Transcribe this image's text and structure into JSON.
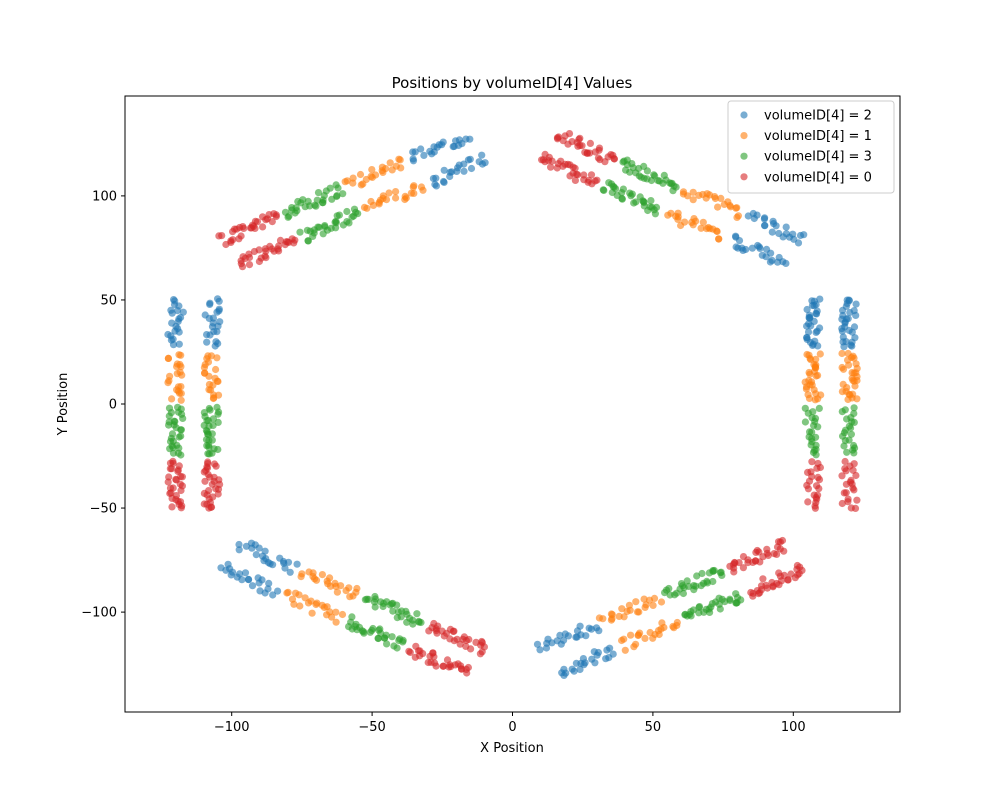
{
  "chart_data": {
    "type": "scatter",
    "title": "Positions by volumeID[4] Values",
    "xlabel": "X Position",
    "ylabel": "Y Position",
    "xlim": [
      -138,
      138
    ],
    "ylim": [
      -148,
      148
    ],
    "xticks": [
      -100,
      -50,
      0,
      50,
      100
    ],
    "yticks": [
      -100,
      -50,
      0,
      50,
      100
    ],
    "xtick_labels": [
      "−100",
      "−50",
      "0",
      "50",
      "100"
    ],
    "ytick_labels": [
      "−100",
      "−50",
      "0",
      "50",
      "100"
    ],
    "grid": false,
    "legend_position": "top-right",
    "marker_alpha": 0.6,
    "series": [
      {
        "name": "volumeID[4] = 2",
        "color": "#1f77b4",
        "band": [
          0,
          26
        ]
      },
      {
        "name": "volumeID[4] = 1",
        "color": "#ff7f0e",
        "band": [
          -26,
          0
        ]
      },
      {
        "name": "volumeID[4] = 3",
        "color": "#2ca02c",
        "band": [
          26,
          52
        ]
      },
      {
        "name": "volumeID[4] = 0",
        "color": "#d62728",
        "band": [
          -52,
          -26
        ]
      }
    ],
    "staves": [
      {
        "angle_deg": 0,
        "radii": [
          107,
          120
        ],
        "band_order": [
          3,
          2,
          1,
          0
        ]
      },
      {
        "angle_deg": 60,
        "radii": [
          107,
          120
        ],
        "band_order": [
          0,
          1,
          2,
          3
        ]
      },
      {
        "angle_deg": 120,
        "radii": [
          107,
          120
        ],
        "band_order": [
          0,
          1,
          2,
          3
        ]
      },
      {
        "angle_deg": 180,
        "radii": [
          107,
          120
        ],
        "band_order": [
          0,
          1,
          2,
          3
        ]
      },
      {
        "angle_deg": 240,
        "radii": [
          107,
          120
        ],
        "band_order": [
          0,
          1,
          2,
          3
        ]
      },
      {
        "angle_deg": 300,
        "radii": [
          107,
          120
        ],
        "band_order": [
          0,
          1,
          2,
          3
        ]
      }
    ]
  }
}
